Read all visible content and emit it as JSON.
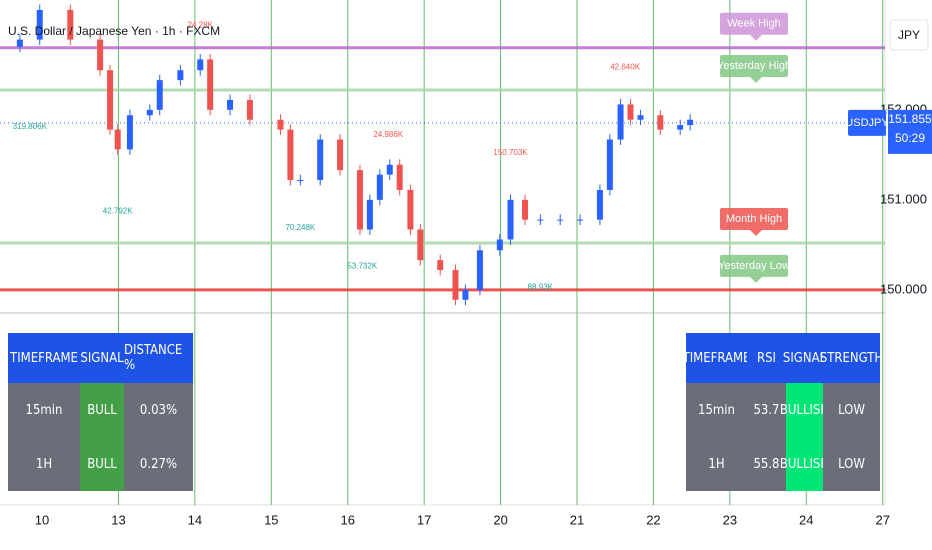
{
  "header": {
    "symbol_title": "U.S. Dollar / Japanese Yen · 1h · FXCM",
    "currency": "JPY",
    "price_tag": "USDJPY",
    "countdown": "50:29"
  },
  "chart_data": {
    "type": "candlestick",
    "up_color": "#2962ff",
    "down_color": "#ef5350",
    "x": [
      -0.29,
      -0.03,
      0.37,
      0.76,
      0.89,
      0.99,
      1.15,
      1.41,
      1.54,
      1.81,
      2.07,
      2.2,
      2.46,
      2.72,
      3.12,
      3.25,
      3.38,
      3.64,
      3.9,
      4.16,
      4.29,
      4.42,
      4.55,
      4.68,
      4.82,
      4.95,
      5.21,
      5.41,
      5.54,
      5.73,
      5.99,
      6.13,
      6.32,
      6.52,
      6.78,
      7.04,
      7.3,
      7.43,
      7.57,
      7.7,
      7.83,
      8.09,
      8.35,
      8.48
    ],
    "open": [
      152.7,
      152.78,
      153.11,
      152.78,
      152.44,
      151.78,
      151.56,
      151.94,
      152.0,
      152.33,
      152.44,
      152.56,
      152.0,
      152.11,
      151.89,
      151.78,
      151.22,
      151.22,
      151.67,
      151.33,
      150.67,
      151.0,
      151.28,
      151.39,
      151.11,
      150.67,
      150.33,
      150.22,
      149.89,
      150.0,
      150.44,
      150.56,
      151.0,
      150.78,
      150.78,
      150.78,
      150.78,
      151.11,
      151.67,
      152.06,
      151.89,
      151.94,
      151.78,
      151.83
    ],
    "high": [
      152.84,
      153.17,
      153.17,
      152.84,
      152.5,
      151.84,
      152.0,
      152.06,
      152.39,
      152.5,
      152.62,
      152.62,
      152.17,
      152.17,
      151.95,
      151.84,
      151.28,
      151.73,
      151.73,
      151.39,
      151.06,
      151.34,
      151.45,
      151.45,
      151.17,
      150.73,
      150.39,
      150.28,
      150.06,
      150.5,
      150.62,
      151.06,
      151.06,
      150.84,
      150.84,
      150.84,
      151.17,
      151.73,
      152.12,
      152.12,
      152.0,
      152.0,
      151.89,
      151.95
    ],
    "low": [
      152.64,
      152.72,
      152.72,
      152.38,
      151.72,
      151.5,
      151.5,
      151.88,
      151.94,
      152.27,
      152.38,
      151.94,
      151.94,
      151.83,
      151.72,
      151.16,
      151.16,
      151.16,
      151.27,
      150.61,
      150.61,
      150.94,
      151.22,
      151.05,
      150.61,
      150.27,
      150.16,
      149.83,
      149.83,
      149.94,
      150.38,
      150.5,
      150.72,
      150.72,
      150.72,
      150.72,
      150.72,
      151.05,
      151.61,
      151.83,
      151.83,
      151.72,
      151.72,
      151.77
    ],
    "close": [
      152.78,
      153.11,
      152.78,
      152.44,
      151.78,
      151.56,
      151.94,
      152.0,
      152.33,
      152.44,
      152.56,
      152.0,
      152.11,
      151.89,
      151.78,
      151.22,
      151.22,
      151.67,
      151.33,
      150.67,
      151.0,
      151.28,
      151.39,
      151.11,
      150.67,
      150.33,
      150.22,
      149.89,
      150.0,
      150.44,
      150.56,
      151.0,
      150.78,
      150.78,
      150.78,
      150.78,
      151.11,
      151.67,
      152.06,
      151.89,
      151.94,
      151.78,
      151.83,
      151.89
    ],
    "xlim": [
      -0.55,
      11.03
    ],
    "xticks": [
      {
        "value": 0,
        "label": "10"
      },
      {
        "value": 1,
        "label": "13"
      },
      {
        "value": 2,
        "label": "14"
      },
      {
        "value": 3,
        "label": "15"
      },
      {
        "value": 4,
        "label": "16"
      },
      {
        "value": 5,
        "label": "17"
      },
      {
        "value": 6,
        "label": "20"
      },
      {
        "value": 7,
        "label": "21"
      },
      {
        "value": 8,
        "label": "22"
      },
      {
        "value": 9,
        "label": "23"
      },
      {
        "value": 10,
        "label": "24"
      },
      {
        "value": 11,
        "label": "27"
      }
    ],
    "ylim": [
      147.61,
      153.22
    ],
    "yticks": [
      {
        "value": 150,
        "label": "150.000"
      },
      {
        "value": 151,
        "label": "151.000"
      },
      {
        "value": 152,
        "label": "152.000"
      }
    ],
    "x_grid": true,
    "grid_color": "#66bb6a",
    "current_price": 151.855,
    "current_price_color": "#2962ff",
    "levels": [
      {
        "name": "Week High",
        "value": 152.69,
        "line_color": "#ba68c8",
        "label_color": "#ce93d8"
      },
      {
        "name": "Yesterday High",
        "value": 152.22,
        "line_color": "#a5d6a7",
        "label_color": "#81c784"
      },
      {
        "name": "Month High",
        "value": 150.52,
        "line_color": "#a5d6a7",
        "label_color": "#ef5350"
      },
      {
        "name": "Yesterday Low",
        "value": 150.0,
        "line_color": "#e53935",
        "label_color": "#81c784"
      }
    ],
    "annotations": [
      {
        "text": "24.28K",
        "x": 2.07,
        "y": 152.94,
        "color": "#ef5350"
      },
      {
        "text": "42.640K",
        "x": 7.63,
        "y": 152.47,
        "color": "#ef5350"
      },
      {
        "text": "24.986K",
        "x": 4.53,
        "y": 151.72,
        "color": "#ef5350"
      },
      {
        "text": "150.703K",
        "x": 6.13,
        "y": 151.52,
        "color": "#ef5350"
      },
      {
        "text": "319.806K",
        "x": -0.16,
        "y": 151.81,
        "color": "#26a69a"
      },
      {
        "text": "42.792K",
        "x": 0.99,
        "y": 150.87,
        "color": "#26a69a"
      },
      {
        "text": "70.248K",
        "x": 3.38,
        "y": 150.69,
        "color": "#26a69a"
      },
      {
        "text": "53.732K",
        "x": 4.19,
        "y": 150.26,
        "color": "#26a69a"
      },
      {
        "text": "88.93K",
        "x": 6.52,
        "y": 150.03,
        "color": "#26a69a"
      }
    ]
  },
  "tables": [
    {
      "header": [
        "TIMEFRAME",
        "SIGNAL",
        "DISTANCE %"
      ],
      "rows": [
        [
          "15min",
          "BULL",
          "0.03%"
        ],
        [
          "1H",
          "BULL",
          "0.27%"
        ]
      ]
    },
    {
      "header": [
        "TIMEFRAME",
        "RSI",
        "SIGNAL",
        "STRENGTH"
      ],
      "rows": [
        [
          "15min",
          "53.7",
          "BULLISH",
          "LOW"
        ],
        [
          "1H",
          "55.8",
          "BULLISH",
          "LOW"
        ]
      ]
    }
  ]
}
